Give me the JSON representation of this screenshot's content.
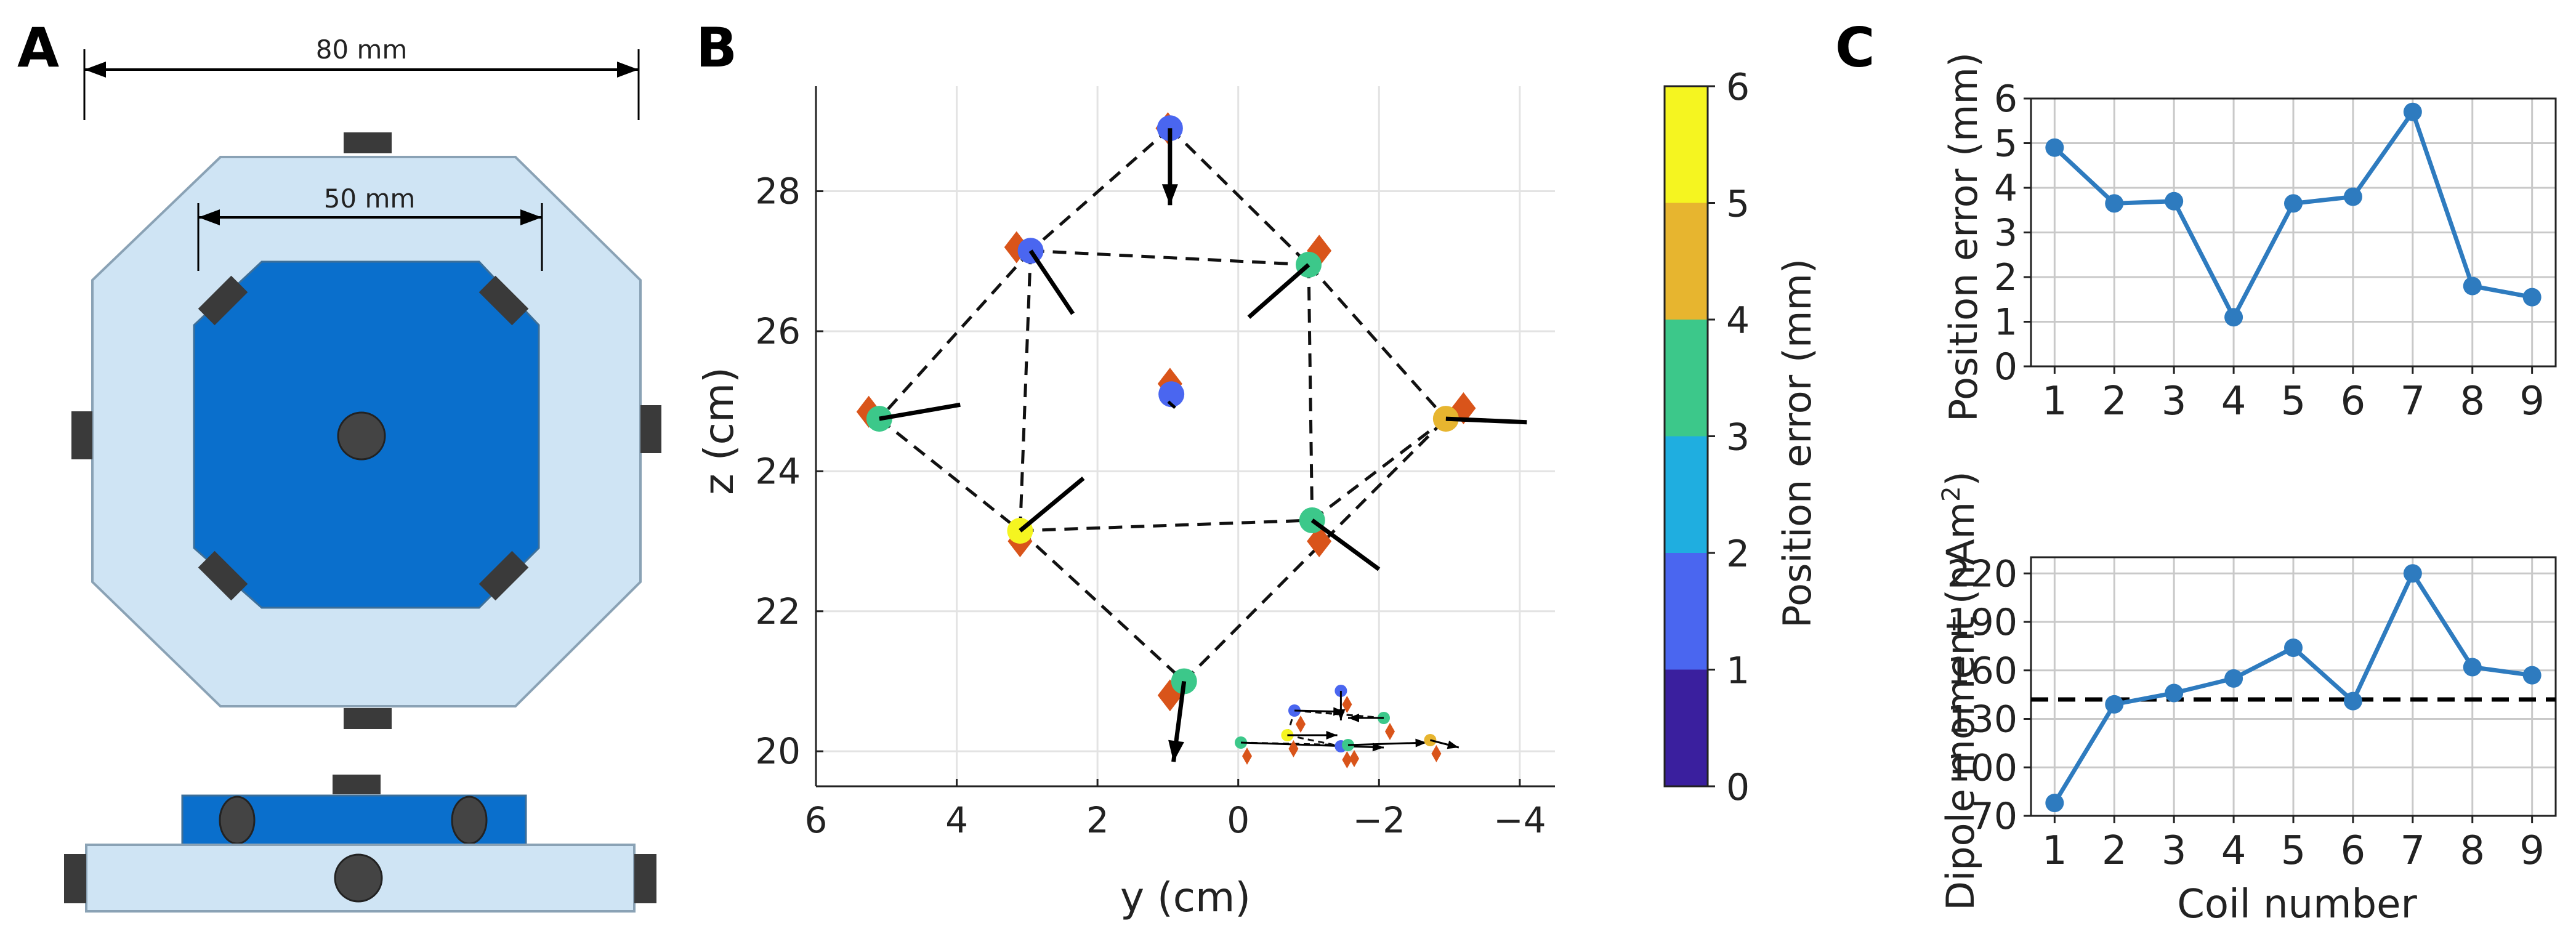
{
  "panel_letters": {
    "a": "A",
    "b": "B",
    "c": "C"
  },
  "panel_a": {
    "outer_dim_label": "80 mm",
    "inner_dim_label": "50 mm"
  },
  "chart_data": [
    {
      "id": "panel-b",
      "type": "scatter",
      "xlabel": "y (cm)",
      "ylabel": "z (cm)",
      "xlim": [
        6,
        -4.5
      ],
      "ylim": [
        19.5,
        29.5
      ],
      "xticks": [
        6,
        4,
        2,
        0,
        -2,
        -4
      ],
      "xtick_labels": [
        "6",
        "4",
        "2",
        "0",
        "−2",
        "−4"
      ],
      "yticks": [
        20,
        22,
        24,
        26,
        28
      ],
      "ytick_labels": [
        "20",
        "22",
        "24",
        "26",
        "28"
      ],
      "grid": true,
      "colorbar": {
        "label": "Position error (mm)",
        "ticks": [
          "0",
          "1",
          "2",
          "3",
          "4",
          "5",
          "6"
        ],
        "colors": [
          "#3a1f9e",
          "#4a66f0",
          "#1faee0",
          "#3cc88a",
          "#e7b52f",
          "#f5f520"
        ]
      },
      "true_marker_color": "#d9541a",
      "coils": [
        {
          "coil": 1,
          "true_y": 1.0,
          "true_z": 28.9,
          "est_y": 0.97,
          "est_z": 28.9,
          "error_mm": 1.0,
          "arrow_dy": 0.0,
          "arrow_dz": -1.1
        },
        {
          "coil": 2,
          "true_y": 3.15,
          "true_z": 27.2,
          "est_y": 2.95,
          "est_z": 27.15,
          "error_mm": 1.7,
          "arrow_dy": -0.6,
          "arrow_dz": -0.9
        },
        {
          "coil": 3,
          "true_y": -1.15,
          "true_z": 27.15,
          "est_y": -1.0,
          "est_z": 26.95,
          "error_mm": 3.7,
          "arrow_dy": 0.85,
          "arrow_dz": -0.75
        },
        {
          "coil": 4,
          "true_y": 5.25,
          "true_z": 24.85,
          "est_y": 5.1,
          "est_z": 24.75,
          "error_mm": 3.6,
          "arrow_dy": -1.15,
          "arrow_dz": 0.2
        },
        {
          "coil": 5,
          "true_y": 0.97,
          "true_z": 25.25,
          "est_y": 0.95,
          "est_z": 25.1,
          "error_mm": 1.1,
          "arrow_dy": 0.0,
          "arrow_dz": -0.1
        },
        {
          "coil": 6,
          "true_y": -3.2,
          "true_z": 24.9,
          "est_y": -2.95,
          "est_z": 24.75,
          "error_mm": 4.3,
          "arrow_dy": -1.15,
          "arrow_dz": -0.05
        },
        {
          "coil": 7,
          "true_y": 3.1,
          "true_z": 23.0,
          "est_y": 3.1,
          "est_z": 23.15,
          "error_mm": 5.7,
          "arrow_dy": -0.9,
          "arrow_dz": 0.75
        },
        {
          "coil": 8,
          "true_y": -1.15,
          "true_z": 23.0,
          "est_y": -1.05,
          "est_z": 23.3,
          "error_mm": 3.8,
          "arrow_dy": -0.95,
          "arrow_dz": -0.7
        },
        {
          "coil": 9,
          "true_y": 0.97,
          "true_z": 20.8,
          "est_y": 0.77,
          "est_z": 21.0,
          "error_mm": 3.2,
          "arrow_dy": 0.15,
          "arrow_dz": -1.15
        }
      ],
      "edges": [
        [
          1,
          2
        ],
        [
          1,
          3
        ],
        [
          2,
          3
        ],
        [
          2,
          4
        ],
        [
          2,
          7
        ],
        [
          3,
          6
        ],
        [
          3,
          8
        ],
        [
          4,
          7
        ],
        [
          7,
          8
        ],
        [
          8,
          6
        ],
        [
          7,
          9
        ],
        [
          9,
          6
        ]
      ],
      "inset_view": {
        "description_label": "",
        "points": [
          {
            "h": 0,
            "v": 0.3,
            "error_mm": 3.6,
            "arrow_dh": 4.0,
            "arrow_dv": -0.2
          },
          {
            "h": 1.3,
            "v": 0.6,
            "error_mm": 5.7,
            "arrow_dh": 1.4,
            "arrow_dv": 0.0
          },
          {
            "h": 1.5,
            "v": 1.6,
            "error_mm": 1.7,
            "arrow_dh": 1.4,
            "arrow_dv": -0.05
          },
          {
            "h": 2.8,
            "v": 2.4,
            "error_mm": 1.0,
            "arrow_dh": 0.0,
            "arrow_dv": -1.2
          },
          {
            "h": 2.8,
            "v": 0.15,
            "error_mm": 1.1,
            "arrow_dh": 0.0,
            "arrow_dv": 0.0
          },
          {
            "h": 3.0,
            "v": 0.2,
            "error_mm": 3.2,
            "arrow_dh": 2.2,
            "arrow_dv": 0.1
          },
          {
            "h": 4.0,
            "v": 1.3,
            "error_mm": 3.7,
            "arrow_dh": -1.0,
            "arrow_dv": 0.0
          },
          {
            "h": 5.3,
            "v": 0.4,
            "error_mm": 4.3,
            "arrow_dh": 0.8,
            "arrow_dv": -0.3
          }
        ]
      }
    },
    {
      "id": "panel-c-top",
      "type": "line",
      "xlabel": "",
      "ylabel": "Position error (mm)",
      "categories": [
        "1",
        "2",
        "3",
        "4",
        "5",
        "6",
        "7",
        "8",
        "9"
      ],
      "values": [
        4.9,
        3.65,
        3.7,
        1.1,
        3.65,
        3.8,
        5.7,
        1.8,
        1.55
      ],
      "ylim": [
        0,
        6
      ],
      "yticks": [
        "0",
        "1",
        "2",
        "3",
        "4",
        "5",
        "6"
      ],
      "grid": true,
      "color": "#2e7bbf"
    },
    {
      "id": "panel-c-bottom",
      "type": "line",
      "xlabel": "Coil number",
      "ylabel": "Dipole moment (nAm",
      "ylabel_sup": "2",
      "ylabel_close": ")",
      "categories": [
        "1",
        "2",
        "3",
        "4",
        "5",
        "6",
        "7",
        "8",
        "9"
      ],
      "values": [
        78,
        139,
        146,
        155,
        174,
        141,
        220,
        162,
        157
      ],
      "reference_line": 142,
      "ylim": [
        70,
        230
      ],
      "yticks": [
        "70",
        "100",
        "130",
        "160",
        "190",
        "220"
      ],
      "grid": true,
      "color": "#2e7bbf"
    }
  ]
}
